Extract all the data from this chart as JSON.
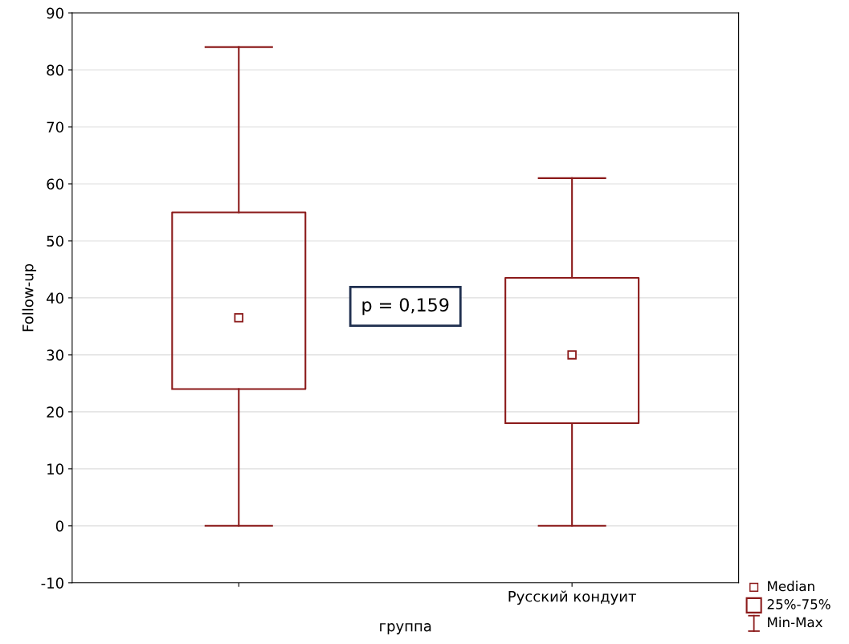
{
  "chart_data": {
    "type": "box",
    "xlabel": "группа",
    "ylabel": "Follow-up",
    "categories": [
      null,
      "Русский кондуит"
    ],
    "series": [
      {
        "color": "#8b1a1a",
        "boxes": [
          {
            "low": 0,
            "q1": 24,
            "median": 36.5,
            "q3": 55,
            "high": 84
          },
          {
            "low": 0,
            "q1": 18,
            "median": 30,
            "q3": 43.5,
            "high": 61
          }
        ]
      }
    ],
    "ylim": [
      -10,
      90
    ],
    "yticks": [
      -10,
      0,
      10,
      20,
      30,
      40,
      50,
      60,
      70,
      80,
      90
    ],
    "grid": "y",
    "marker": "square",
    "annotations": [
      "p = 0,159",
      "Median",
      "25%-75%",
      "Min-Max"
    ]
  }
}
